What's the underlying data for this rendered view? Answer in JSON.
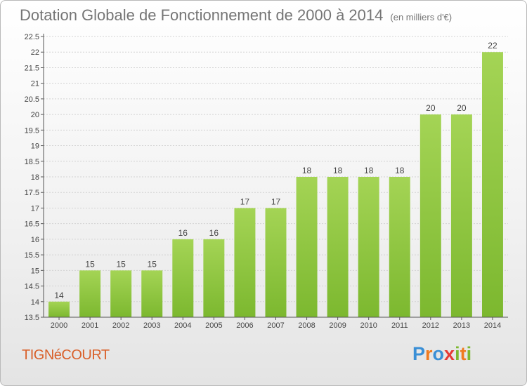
{
  "header": {
    "title": "Dotation Globale de Fonctionnement de 2000 à 2014",
    "subtitle": "(en milliers d'€)"
  },
  "footer": {
    "commune": "TIGNéCOURT",
    "logo_letters": [
      {
        "ch": "P",
        "color": "#3a8fd6"
      },
      {
        "ch": "r",
        "color": "#f07b1f"
      },
      {
        "ch": "o",
        "color": "#3a8fd6"
      },
      {
        "ch": "x",
        "color": "#e53935"
      },
      {
        "ch": "i",
        "color": "#7cb82f"
      },
      {
        "ch": "t",
        "color": "#f07b1f"
      },
      {
        "ch": "i",
        "color": "#7cb82f"
      }
    ]
  },
  "chart_data": {
    "type": "bar",
    "title": "Dotation Globale de Fonctionnement de 2000 à 2014",
    "subtitle": "(en milliers d'€)",
    "categories": [
      "2000",
      "2001",
      "2002",
      "2003",
      "2004",
      "2005",
      "2006",
      "2007",
      "2008",
      "2009",
      "2010",
      "2011",
      "2012",
      "2013",
      "2014"
    ],
    "values": [
      14,
      15,
      15,
      15,
      16,
      16,
      17,
      17,
      18,
      18,
      18,
      18,
      20,
      20,
      22
    ],
    "ylim": [
      13.5,
      22.5
    ],
    "yticks": [
      "13.5",
      "14",
      "14.5",
      "15",
      "15.5",
      "16",
      "16.5",
      "17",
      "17.5",
      "18",
      "18.5",
      "19",
      "19.5",
      "20",
      "20.5",
      "21",
      "21.5",
      "22",
      "22.5"
    ],
    "grid": true,
    "bar_color": "#7cb82f",
    "bar_color_light": "#a4d455"
  }
}
